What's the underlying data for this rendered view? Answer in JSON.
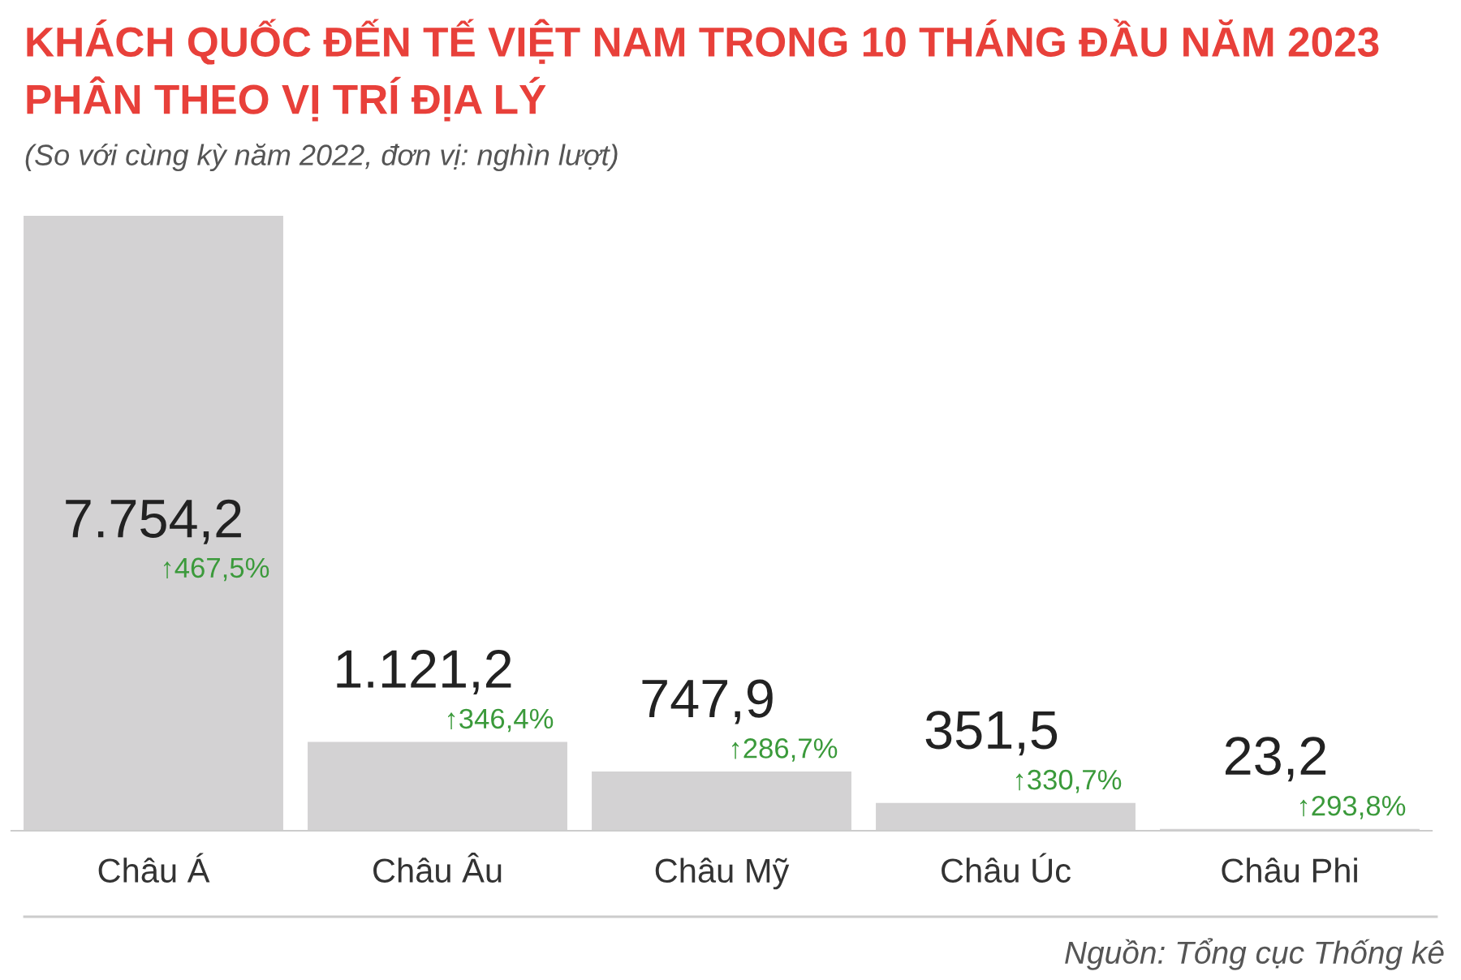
{
  "chart_data": {
    "type": "bar",
    "title": "KHÁCH QUỐC ĐẾN TẾ VIỆT NAM TRONG 10 THÁNG ĐẦU NĂM 2023\nPHÂN THEO VỊ TRÍ ĐỊA LÝ",
    "subtitle": "(So với cùng kỳ năm 2022, đơn vị: nghìn lượt)",
    "categories": [
      "Châu Á",
      "Châu Âu",
      "Châu Mỹ",
      "Châu Úc",
      "Châu Phi"
    ],
    "values": [
      7754.2,
      1121.2,
      747.9,
      351.5,
      23.2
    ],
    "value_labels": [
      "7.754,2",
      "1.121,2",
      "747,9",
      "351,5",
      "23,2"
    ],
    "color": "#d3d2d3",
    "annotations": [
      "↑467,5%",
      "↑346,4%",
      "↑286,7%",
      "↑330,7%",
      "↑293,8%",
      "Nguồn: Tổng cục Thống kê"
    ],
    "grid": false,
    "legend": false
  }
}
